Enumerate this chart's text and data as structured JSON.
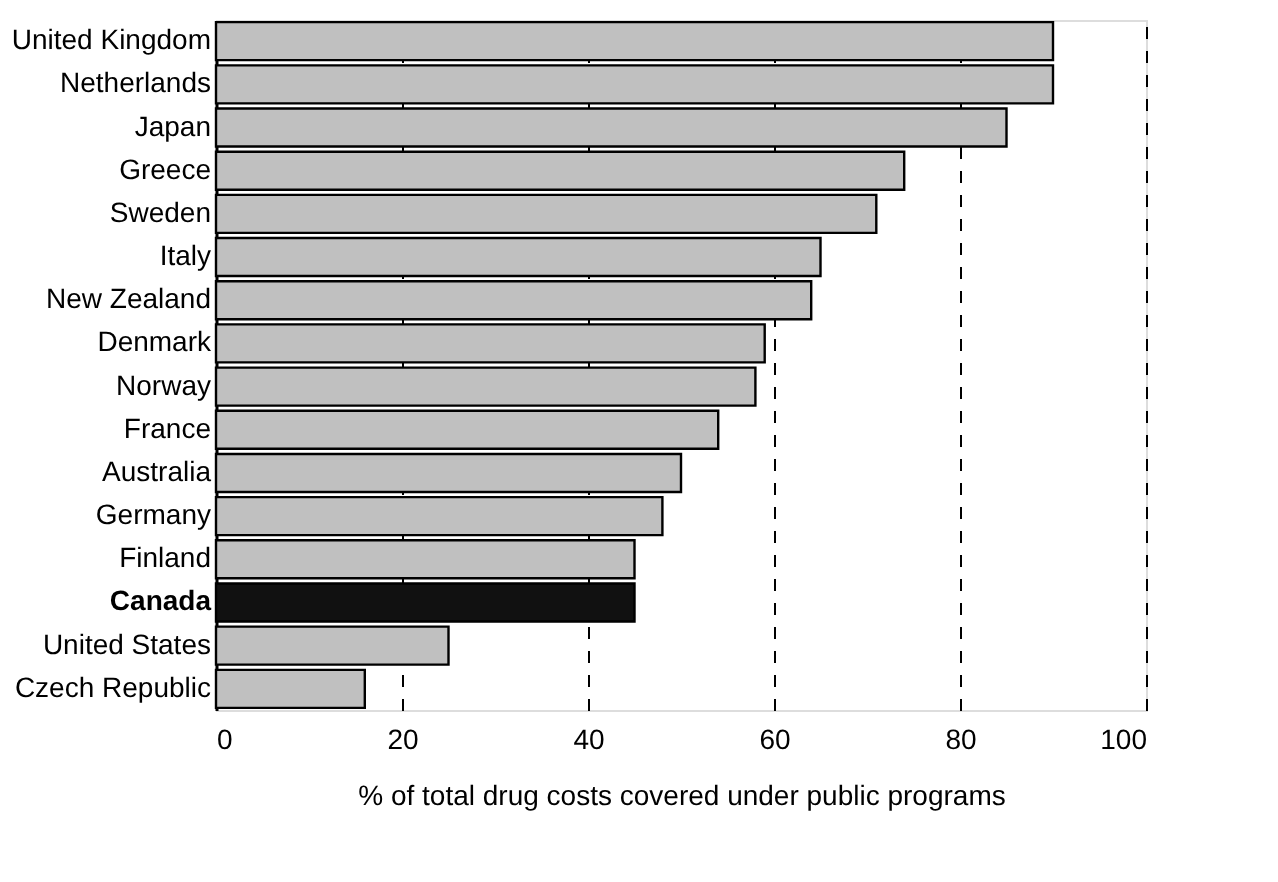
{
  "chart_data": {
    "type": "bar",
    "orientation": "horizontal",
    "xlabel": "% of total drug costs covered under public programs",
    "categories": [
      "United Kingdom",
      "Netherlands",
      "Japan",
      "Greece",
      "Sweden",
      "Italy",
      "New Zealand",
      "Denmark",
      "Norway",
      "France",
      "Australia",
      "Germany",
      "Finland",
      "Canada",
      "United States",
      "Czech Republic"
    ],
    "values": [
      90,
      90,
      85,
      74,
      71,
      65,
      64,
      59,
      58,
      54,
      50,
      48,
      45,
      45,
      25,
      16
    ],
    "colors": [
      "#c0c0c0",
      "#c0c0c0",
      "#c0c0c0",
      "#c0c0c0",
      "#c0c0c0",
      "#c0c0c0",
      "#c0c0c0",
      "#c0c0c0",
      "#c0c0c0",
      "#c0c0c0",
      "#c0c0c0",
      "#c0c0c0",
      "#c0c0c0",
      "#111111",
      "#c0c0c0",
      "#c0c0c0"
    ],
    "xlim": [
      0,
      100
    ],
    "xticks": [
      0,
      20,
      40,
      60,
      80,
      100
    ],
    "grid": "x"
  }
}
